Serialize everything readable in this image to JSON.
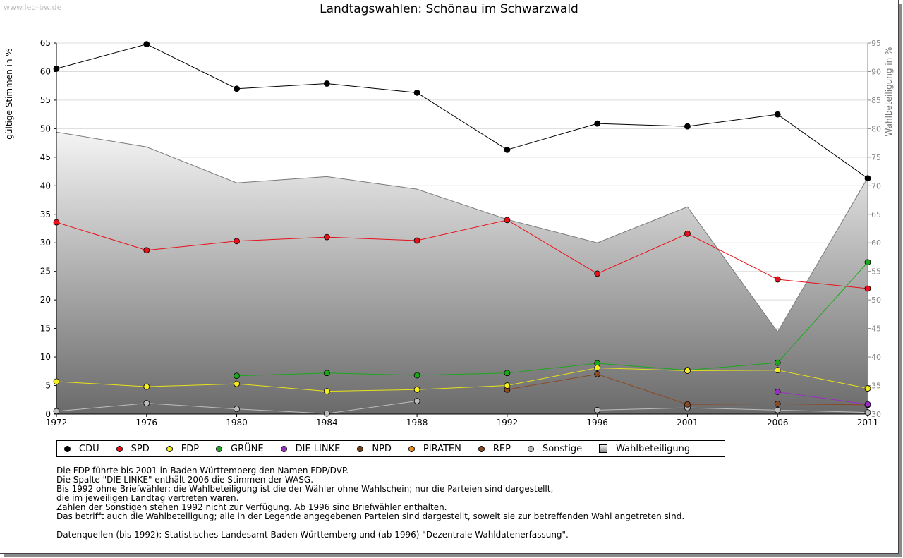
{
  "watermark": "www.leo-bw.de",
  "chart_data": {
    "type": "line",
    "title": "Landtagswahlen: Schönau im Schwarzwald",
    "ylabel": "gültige Stimmen in %",
    "y2label": "Wahlbeteiligung in %",
    "ylim": [
      0,
      65
    ],
    "y2lim": [
      30,
      95
    ],
    "yticks": [
      "0",
      "5",
      "10",
      "15",
      "20",
      "25",
      "30",
      "35",
      "40",
      "45",
      "50",
      "55",
      "60",
      "65"
    ],
    "y2ticks": [
      "30",
      "35",
      "40",
      "45",
      "50",
      "55",
      "60",
      "65",
      "70",
      "75",
      "80",
      "85",
      "90",
      "95"
    ],
    "x": [
      "1972",
      "1976",
      "1980",
      "1984",
      "1988",
      "1992",
      "1996",
      "2001",
      "2006",
      "2011"
    ],
    "series": [
      {
        "name": "CDU",
        "color": "#000000",
        "line": "#000000",
        "values": [
          60.5,
          64.8,
          57.0,
          57.9,
          56.3,
          46.3,
          50.9,
          50.4,
          52.5,
          41.3
        ]
      },
      {
        "name": "SPD",
        "color": "#e8101a",
        "line": "#e8101a",
        "values": [
          33.6,
          28.7,
          30.3,
          31.0,
          30.4,
          34.0,
          24.6,
          31.6,
          23.6,
          22.0
        ]
      },
      {
        "name": "FDP",
        "color": "#f5ee1e",
        "line": "#e8e21a",
        "values": [
          5.7,
          4.8,
          5.3,
          4.0,
          4.3,
          5.0,
          8.1,
          7.6,
          7.7,
          4.5
        ]
      },
      {
        "name": "GRÜNE",
        "color": "#1aa81a",
        "line": "#1aa81a",
        "values": [
          null,
          null,
          6.7,
          7.2,
          6.8,
          7.2,
          8.9,
          7.7,
          9.0,
          26.6
        ]
      },
      {
        "name": "DIE LINKE",
        "color": "#9a2cc8",
        "line": "#9a2cc8",
        "values": [
          null,
          null,
          null,
          null,
          null,
          null,
          null,
          null,
          3.9,
          1.7
        ]
      },
      {
        "name": "NPD",
        "color": "#6b3f1c",
        "line": "#6b3f1c",
        "values": [
          null,
          null,
          null,
          null,
          null,
          null,
          null,
          null,
          null,
          null
        ]
      },
      {
        "name": "PIRATEN",
        "color": "#f08a1c",
        "line": "#f08a1c",
        "values": [
          null,
          null,
          null,
          null,
          null,
          null,
          null,
          null,
          null,
          null
        ]
      },
      {
        "name": "REP",
        "color": "#8a4a24",
        "line": "#8a4a24",
        "values": [
          null,
          null,
          null,
          null,
          null,
          4.3,
          7.0,
          1.7,
          1.8,
          1.6
        ]
      },
      {
        "name": "Sonstige",
        "color": "#bdbdbd",
        "line": "#bdbdbd",
        "values": [
          0.5,
          1.9,
          0.9,
          0.1,
          2.3,
          null,
          0.7,
          1.1,
          0.7,
          0.3
        ]
      }
    ],
    "turnout": {
      "name": "Wahlbeteiligung",
      "values": [
        79.4,
        76.8,
        70.5,
        71.6,
        69.4,
        64.1,
        60.0,
        66.3,
        44.4,
        71.4
      ]
    }
  },
  "legend": {
    "items": [
      {
        "label": "CDU",
        "color": "#000000"
      },
      {
        "label": "SPD",
        "color": "#e8101a"
      },
      {
        "label": "FDP",
        "color": "#f5ee1e"
      },
      {
        "label": "GRÜNE",
        "color": "#1aa81a"
      },
      {
        "label": "DIE LINKE",
        "color": "#9a2cc8"
      },
      {
        "label": "NPD",
        "color": "#6b3f1c"
      },
      {
        "label": "PIRATEN",
        "color": "#f08a1c"
      },
      {
        "label": "REP",
        "color": "#8a4a24"
      },
      {
        "label": "Sonstige",
        "color": "#bdbdbd"
      }
    ],
    "turnout_label": "Wahlbeteiligung"
  },
  "notes": {
    "lines": [
      "Die FDP führte bis 2001 in Baden-Württemberg den Namen FDP/DVP.",
      "Die Spalte \"DIE LINKE\" enthält 2006 die Stimmen der WASG.",
      "Bis 1992 ohne Briefwähler; die Wahlbeteiligung ist die der Wähler ohne Wahlschein; nur die Parteien sind dargestellt,",
      "die im jeweiligen Landtag vertreten waren.",
      "Zahlen der Sonstigen stehen 1992 nicht zur Verfügung. Ab 1996 sind Briefwähler enthalten.",
      "Das betrifft auch die Wahlbeteiligung; alle in der Legende angegebenen Parteien sind dargestellt, soweit sie zur betreffenden Wahl angetreten sind."
    ],
    "source": "Datenquellen (bis 1992): Statistisches Landesamt Baden-Württemberg und (ab 1996) \"Dezentrale Wahldatenerfassung\"."
  }
}
